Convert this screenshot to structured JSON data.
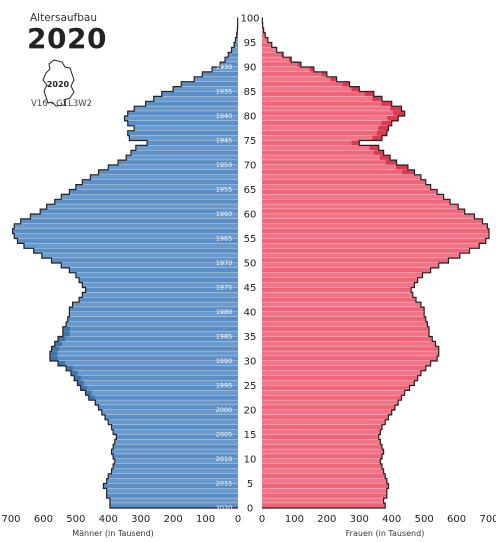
{
  "header": {
    "subtitle": "Altersaufbau",
    "year": "2020",
    "badge_year": "2020",
    "variant": "V16 - G1L3W2"
  },
  "colors": {
    "male": "#5b8ec4",
    "male_dark": "#3f73ab",
    "female": "#ef6679",
    "female_dark": "#d83a4f",
    "outline": "#222222"
  },
  "chart_data": {
    "type": "bar",
    "orientation": "horizontal",
    "title": "2020",
    "age_axis": {
      "range": [
        0,
        100
      ],
      "tick_labels": [
        "0",
        "5",
        "10",
        "15",
        "20",
        "25",
        "30",
        "35",
        "40",
        "45",
        "50",
        "55",
        "60",
        "65",
        "70",
        "75",
        "80",
        "85",
        "90",
        "95",
        "100"
      ]
    },
    "birth_year_labels": [
      "2020",
      "2015",
      "2010",
      "2005",
      "2000",
      "1995",
      "1990",
      "1985",
      "1980",
      "1975",
      "1970",
      "1965",
      "1960",
      "1955",
      "1950",
      "1945",
      "1940",
      "1935",
      "1930"
    ],
    "x_left": {
      "label": "Männer (in Tausend)",
      "range": [
        0,
        700
      ],
      "tick_labels": [
        "700",
        "600",
        "500",
        "400",
        "300",
        "200",
        "100",
        "0"
      ]
    },
    "x_right": {
      "label": "Frauen (in Tausend)",
      "range": [
        0,
        700
      ],
      "tick_labels": [
        "0",
        "100",
        "200",
        "300",
        "400",
        "500",
        "600",
        "700"
      ]
    },
    "ages": [
      0,
      1,
      2,
      3,
      4,
      5,
      6,
      7,
      8,
      9,
      10,
      11,
      12,
      13,
      14,
      15,
      16,
      17,
      18,
      19,
      20,
      21,
      22,
      23,
      24,
      25,
      26,
      27,
      28,
      29,
      30,
      31,
      32,
      33,
      34,
      35,
      36,
      37,
      38,
      39,
      40,
      41,
      42,
      43,
      44,
      45,
      46,
      47,
      48,
      49,
      50,
      51,
      52,
      53,
      54,
      55,
      56,
      57,
      58,
      59,
      60,
      61,
      62,
      63,
      64,
      65,
      66,
      67,
      68,
      69,
      70,
      71,
      72,
      73,
      74,
      75,
      76,
      77,
      78,
      79,
      80,
      81,
      82,
      83,
      84,
      85,
      86,
      87,
      88,
      89,
      90,
      91,
      92,
      93,
      94,
      95,
      96,
      97,
      98,
      99
    ],
    "series": [
      {
        "name": "Männer",
        "values": [
          395,
          395,
          405,
          405,
          415,
          405,
          400,
          390,
          385,
          380,
          385,
          390,
          385,
          380,
          375,
          385,
          390,
          400,
          410,
          420,
          430,
          440,
          460,
          470,
          485,
          495,
          505,
          515,
          530,
          555,
          580,
          580,
          575,
          565,
          555,
          540,
          540,
          530,
          525,
          520,
          520,
          510,
          490,
          480,
          470,
          480,
          490,
          500,
          520,
          545,
          575,
          605,
          630,
          660,
          680,
          690,
          695,
          690,
          670,
          640,
          610,
          590,
          565,
          545,
          520,
          500,
          480,
          455,
          430,
          400,
          370,
          345,
          330,
          315,
          280,
          335,
          340,
          320,
          340,
          350,
          340,
          320,
          285,
          260,
          235,
          200,
          175,
          135,
          110,
          80,
          55,
          40,
          30,
          20,
          12,
          8,
          4,
          2,
          1,
          1
        ]
      },
      {
        "name": "Frauen",
        "values": [
          380,
          375,
          385,
          385,
          390,
          385,
          380,
          375,
          370,
          365,
          370,
          375,
          370,
          365,
          360,
          365,
          370,
          380,
          390,
          400,
          410,
          420,
          430,
          440,
          455,
          470,
          480,
          490,
          505,
          520,
          540,
          545,
          545,
          535,
          525,
          515,
          515,
          510,
          505,
          500,
          500,
          490,
          475,
          465,
          460,
          470,
          480,
          495,
          520,
          545,
          575,
          610,
          640,
          670,
          690,
          700,
          700,
          695,
          680,
          655,
          625,
          605,
          580,
          560,
          540,
          520,
          505,
          490,
          470,
          450,
          415,
          395,
          375,
          360,
          300,
          370,
          385,
          390,
          400,
          420,
          440,
          430,
          400,
          370,
          345,
          300,
          270,
          230,
          200,
          160,
          120,
          90,
          65,
          45,
          30,
          18,
          10,
          5,
          2,
          1
        ]
      }
    ]
  }
}
